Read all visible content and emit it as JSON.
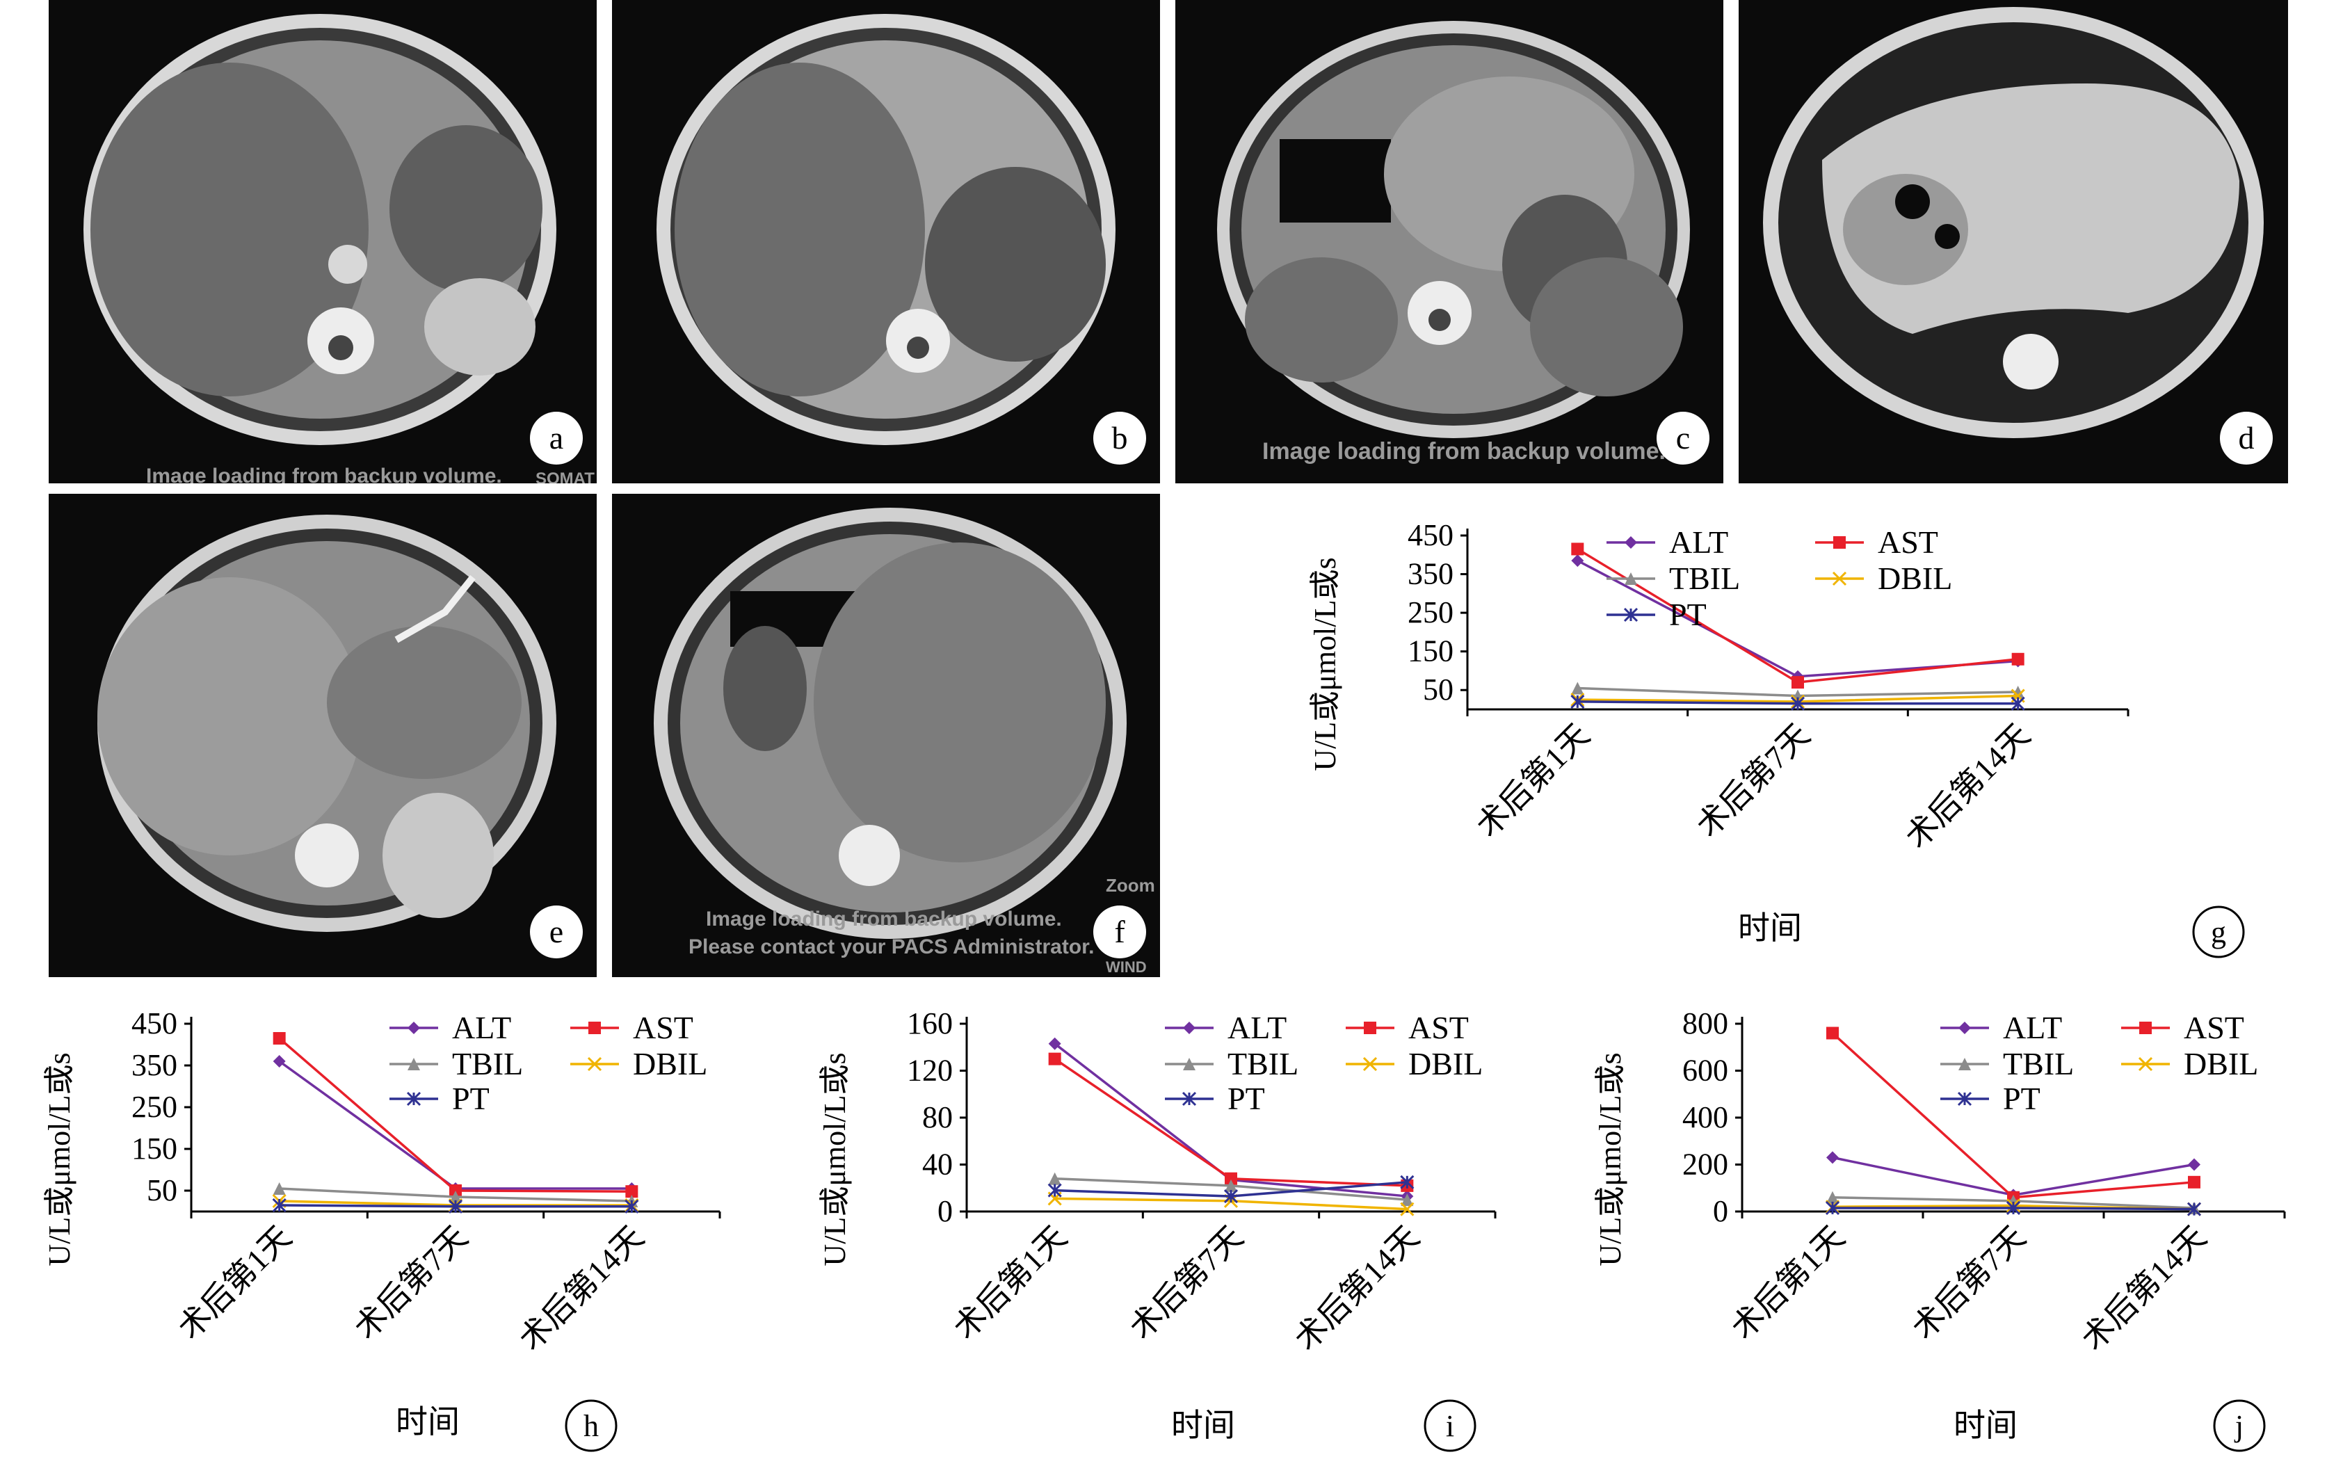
{
  "scans": [
    {
      "label": "a",
      "overlay": [
        "Image loading from backup volume.",
        "SOMAT"
      ]
    },
    {
      "label": "b",
      "overlay": []
    },
    {
      "label": "c",
      "overlay": [
        "Image loading from backup volume."
      ]
    },
    {
      "label": "d",
      "overlay": []
    },
    {
      "label": "e",
      "overlay": []
    },
    {
      "label": "f",
      "overlay": [
        "Image loading from backup volume.",
        "Please contact your PACS Administrator.",
        "Zoom",
        "WIND"
      ]
    }
  ],
  "legend_names": [
    "ALT",
    "AST",
    "TBIL",
    "DBIL",
    "PT"
  ],
  "series_colors": {
    "ALT": "#7030a0",
    "AST": "#e8202a",
    "TBIL": "#8c8c8c",
    "DBIL": "#f0b400",
    "PT": "#2e3192"
  },
  "series_markers": {
    "ALT": "diamond",
    "AST": "square",
    "TBIL": "triangle",
    "DBIL": "x",
    "PT": "star"
  },
  "chart_data": [
    {
      "panel": "g",
      "type": "line",
      "categories": [
        "术后第1天",
        "术后第7天",
        "术后第14天"
      ],
      "ylabel": "U/L或μmol/L或s",
      "xlabel": "时间",
      "yticks": [
        "450",
        "350",
        "250",
        "150",
        "50"
      ],
      "ylim": [
        0,
        450
      ],
      "series": [
        {
          "name": "ALT",
          "values": [
            385,
            85,
            125
          ]
        },
        {
          "name": "AST",
          "values": [
            415,
            70,
            130
          ]
        },
        {
          "name": "TBIL",
          "values": [
            55,
            35,
            45
          ]
        },
        {
          "name": "DBIL",
          "values": [
            25,
            20,
            35
          ]
        },
        {
          "name": "PT",
          "values": [
            20,
            15,
            15
          ]
        }
      ]
    },
    {
      "panel": "h",
      "type": "line",
      "categories": [
        "术后第1天",
        "术后第7天",
        "术后第14天"
      ],
      "ylabel": "U/L或μmol/L或s",
      "xlabel": "时间",
      "yticks": [
        "450",
        "350",
        "250",
        "150",
        "50"
      ],
      "ylim": [
        0,
        450
      ],
      "series": [
        {
          "name": "ALT",
          "values": [
            360,
            55,
            55
          ]
        },
        {
          "name": "AST",
          "values": [
            415,
            50,
            48
          ]
        },
        {
          "name": "TBIL",
          "values": [
            55,
            35,
            25
          ]
        },
        {
          "name": "DBIL",
          "values": [
            25,
            15,
            15
          ]
        },
        {
          "name": "PT",
          "values": [
            15,
            12,
            12
          ]
        }
      ]
    },
    {
      "panel": "i",
      "type": "line",
      "categories": [
        "术后第1天",
        "术后第7天",
        "术后第14天"
      ],
      "ylabel": "U/L或μmol/L或s",
      "xlabel": "时间",
      "yticks": [
        "160",
        "120",
        "80",
        "40",
        "0"
      ],
      "ylim": [
        0,
        160
      ],
      "series": [
        {
          "name": "ALT",
          "values": [
            143,
            27,
            13
          ]
        },
        {
          "name": "AST",
          "values": [
            130,
            28,
            22
          ]
        },
        {
          "name": "TBIL",
          "values": [
            28,
            22,
            10
          ]
        },
        {
          "name": "DBIL",
          "values": [
            11,
            9,
            2
          ]
        },
        {
          "name": "PT",
          "values": [
            18,
            13,
            25
          ]
        }
      ]
    },
    {
      "panel": "j",
      "type": "line",
      "categories": [
        "术后第1天",
        "术后第7天",
        "术后第14天"
      ],
      "ylabel": "U/L或μmol/L或s",
      "xlabel": "时间",
      "yticks": [
        "800",
        "600",
        "400",
        "200",
        "0"
      ],
      "ylim": [
        0,
        800
      ],
      "series": [
        {
          "name": "ALT",
          "values": [
            230,
            70,
            200
          ]
        },
        {
          "name": "AST",
          "values": [
            760,
            60,
            125
          ]
        },
        {
          "name": "TBIL",
          "values": [
            60,
            45,
            15
          ]
        },
        {
          "name": "DBIL",
          "values": [
            20,
            25,
            10
          ]
        },
        {
          "name": "PT",
          "values": [
            15,
            15,
            10
          ]
        }
      ]
    }
  ]
}
